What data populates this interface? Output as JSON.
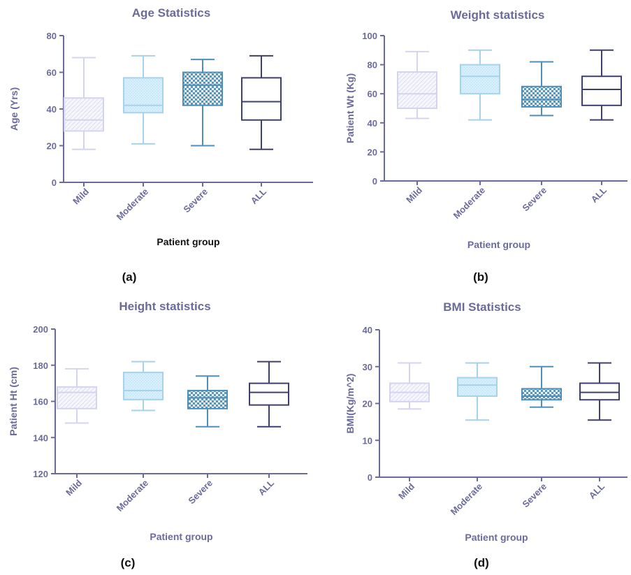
{
  "figure": {
    "captions": [
      "(a)",
      "(b)",
      "(c)",
      "(d)"
    ]
  },
  "chart_data": [
    {
      "type": "boxplot",
      "title": "Age Statistics",
      "xlabel": "Patient group",
      "ylabel": "Age (Yrs)",
      "ylim": [
        0,
        80
      ],
      "yticks": [
        "0",
        "20",
        "40",
        "60",
        "80"
      ],
      "categories": [
        "Mild",
        "Moderate",
        "Severe",
        "ALL"
      ],
      "boxes": [
        {
          "name": "Mild",
          "min": 18,
          "q1": 28,
          "median": 34,
          "q3": 46,
          "max": 68
        },
        {
          "name": "Moderate",
          "min": 21,
          "q1": 38,
          "median": 42,
          "q3": 57,
          "max": 69
        },
        {
          "name": "Severe",
          "min": 20,
          "q1": 42,
          "median": 53,
          "q3": 60,
          "max": 67
        },
        {
          "name": "ALL",
          "min": 18,
          "q1": 34,
          "median": 44,
          "q3": 57,
          "max": 69
        }
      ],
      "colors": [
        "#d4d4f0",
        "#a6d2ec",
        "#4f8fb7",
        "#3f3f6d"
      ],
      "fills": [
        "lines",
        "light",
        "checker",
        "none"
      ],
      "xlabel_color": "#111111",
      "grid": false
    },
    {
      "type": "boxplot",
      "title": "Weight statistics",
      "xlabel": "Patient group",
      "ylabel": "Patient Wt (Kg)",
      "ylim": [
        0,
        100
      ],
      "yticks": [
        "0",
        "20",
        "40",
        "60",
        "80",
        "100"
      ],
      "categories": [
        "Mild",
        "Moderate",
        "Severe",
        "ALL"
      ],
      "boxes": [
        {
          "name": "Mild",
          "min": 43,
          "q1": 50,
          "median": 60,
          "q3": 75,
          "max": 89
        },
        {
          "name": "Moderate",
          "min": 42,
          "q1": 60,
          "median": 72,
          "q3": 80,
          "max": 90
        },
        {
          "name": "Severe",
          "min": 45,
          "q1": 51,
          "median": 56,
          "q3": 65,
          "max": 82
        },
        {
          "name": "ALL",
          "min": 42,
          "q1": 52,
          "median": 63,
          "q3": 72,
          "max": 90
        }
      ],
      "colors": [
        "#d4d4f0",
        "#a6d2ec",
        "#4f8fb7",
        "#3f3f6d"
      ],
      "fills": [
        "lines",
        "light",
        "checker",
        "none"
      ],
      "xlabel_color": "#6b6b9b",
      "grid": false
    },
    {
      "type": "boxplot",
      "title": "Height statistics",
      "xlabel": "Patient group",
      "ylabel": "Patient Ht (cm)",
      "ylim": [
        120,
        200
      ],
      "yticks": [
        "120",
        "140",
        "160",
        "180",
        "200"
      ],
      "categories": [
        "Mild",
        "Moderate",
        "Severe",
        "ALL"
      ],
      "boxes": [
        {
          "name": "Mild",
          "min": 148,
          "q1": 156,
          "median": 165,
          "q3": 168,
          "max": 178
        },
        {
          "name": "Moderate",
          "min": 155,
          "q1": 161,
          "median": 166,
          "q3": 176,
          "max": 182
        },
        {
          "name": "Severe",
          "min": 146,
          "q1": 156,
          "median": 162,
          "q3": 166,
          "max": 174
        },
        {
          "name": "ALL",
          "min": 146,
          "q1": 158,
          "median": 165,
          "q3": 170,
          "max": 182
        }
      ],
      "colors": [
        "#d4d4f0",
        "#a6d2ec",
        "#4f8fb7",
        "#3f3f6d"
      ],
      "fills": [
        "lines",
        "light",
        "checker",
        "none"
      ],
      "xlabel_color": "#6b6b9b",
      "grid": false
    },
    {
      "type": "boxplot",
      "title": "BMI Statistics",
      "xlabel": "Patient group",
      "ylabel": "BMI(Kg/m^2)",
      "ylim": [
        0,
        40
      ],
      "yticks": [
        "0",
        "10",
        "20",
        "30",
        "40"
      ],
      "categories": [
        "Mild",
        "Moderate",
        "Severe",
        "ALL"
      ],
      "boxes": [
        {
          "name": "Mild",
          "min": 18.5,
          "q1": 20.5,
          "median": 23,
          "q3": 25.5,
          "max": 31
        },
        {
          "name": "Moderate",
          "min": 15.5,
          "q1": 22,
          "median": 25,
          "q3": 27,
          "max": 31
        },
        {
          "name": "Severe",
          "min": 19,
          "q1": 21,
          "median": 22,
          "q3": 24,
          "max": 30
        },
        {
          "name": "ALL",
          "min": 15.5,
          "q1": 21,
          "median": 23,
          "q3": 25.5,
          "max": 31
        }
      ],
      "colors": [
        "#d4d4f0",
        "#a6d2ec",
        "#4f8fb7",
        "#3f3f6d"
      ],
      "fills": [
        "lines",
        "light",
        "checker",
        "none"
      ],
      "xlabel_color": "#6b6b9b",
      "grid": false
    }
  ]
}
